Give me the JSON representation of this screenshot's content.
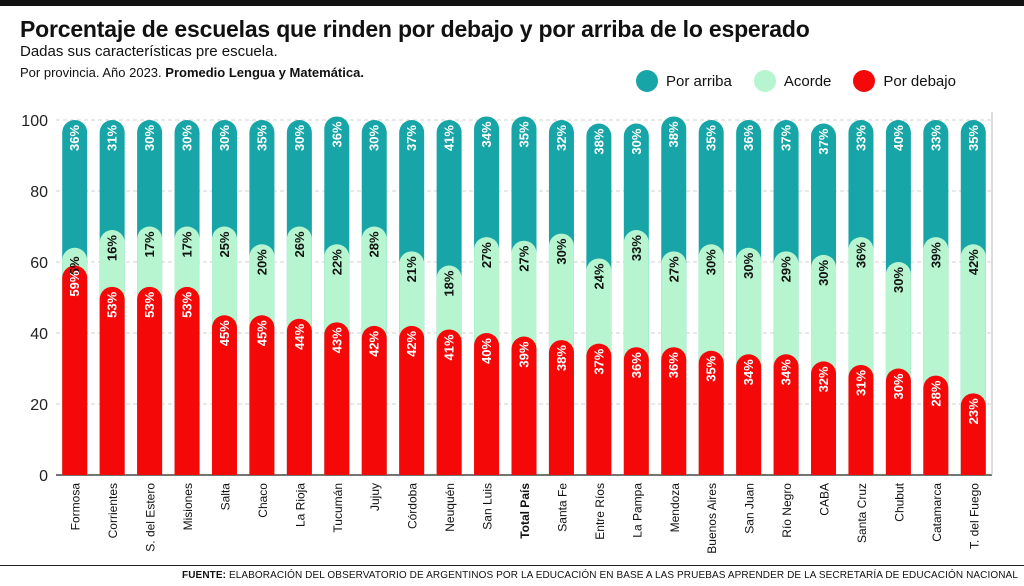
{
  "header": {
    "title": "Porcentaje de escuelas que rinden por debajo y por arriba de lo esperado",
    "subtitle": "Dadas sus características pre escuela.",
    "subtitle2_prefix": "Por provincia. Año 2023.",
    "subtitle2_bold": "Promedio Lengua y Matemática."
  },
  "legend": [
    {
      "label": "Por arriba",
      "color": "#17A5A8"
    },
    {
      "label": "Acorde",
      "color": "#B6F5CF"
    },
    {
      "label": "Por debajo",
      "color": "#F50808"
    }
  ],
  "footer": {
    "label": "FUENTE:",
    "text": "ELABORACIÓN DEL OBSERVATORIO DE ARGENTINOS POR LA EDUCACIÓN EN BASE A LAS PRUEBAS APRENDER DE LA SECRETARÍA DE EDUCACIÓN NACIONAL"
  },
  "chart_data": {
    "type": "bar",
    "stacked": true,
    "title": "Porcentaje de escuelas que rinden por debajo y por arriba de lo esperado",
    "xlabel": "",
    "ylabel": "",
    "ylim": [
      0,
      100
    ],
    "yticks": [
      0,
      20,
      40,
      60,
      80,
      100
    ],
    "grid": true,
    "legend_position": "top-right",
    "highlight_category": "Total País",
    "categories": [
      "Formosa",
      "Corrientes",
      "S. del Estero",
      "Misiones",
      "Salta",
      "Chaco",
      "La Rioja",
      "Tucumán",
      "Jujuy",
      "Córdoba",
      "Neuquén",
      "San Luis",
      "Total País",
      "Santa Fe",
      "Entre Ríos",
      "La Pampa",
      "Mendoza",
      "Buenos Aires",
      "San Juan",
      "Río Negro",
      "CABA",
      "Santa Cruz",
      "Chubut",
      "Catamarca",
      "T. del Fuego"
    ],
    "series": [
      {
        "name": "Por debajo",
        "color": "#F50808",
        "values": [
          59,
          53,
          53,
          53,
          45,
          45,
          44,
          43,
          42,
          42,
          41,
          40,
          39,
          38,
          37,
          36,
          36,
          35,
          34,
          34,
          32,
          31,
          30,
          28,
          23
        ]
      },
      {
        "name": "Acorde",
        "color": "#B6F5CF",
        "values": [
          5,
          16,
          17,
          17,
          25,
          20,
          26,
          22,
          28,
          21,
          18,
          27,
          27,
          30,
          24,
          33,
          27,
          30,
          30,
          29,
          30,
          36,
          30,
          39,
          42
        ]
      },
      {
        "name": "Por arriba",
        "color": "#17A5A8",
        "values": [
          36,
          31,
          30,
          30,
          30,
          35,
          30,
          36,
          30,
          37,
          41,
          34,
          35,
          32,
          38,
          30,
          38,
          35,
          36,
          37,
          37,
          33,
          40,
          33,
          35
        ]
      }
    ],
    "value_suffix": "%"
  }
}
